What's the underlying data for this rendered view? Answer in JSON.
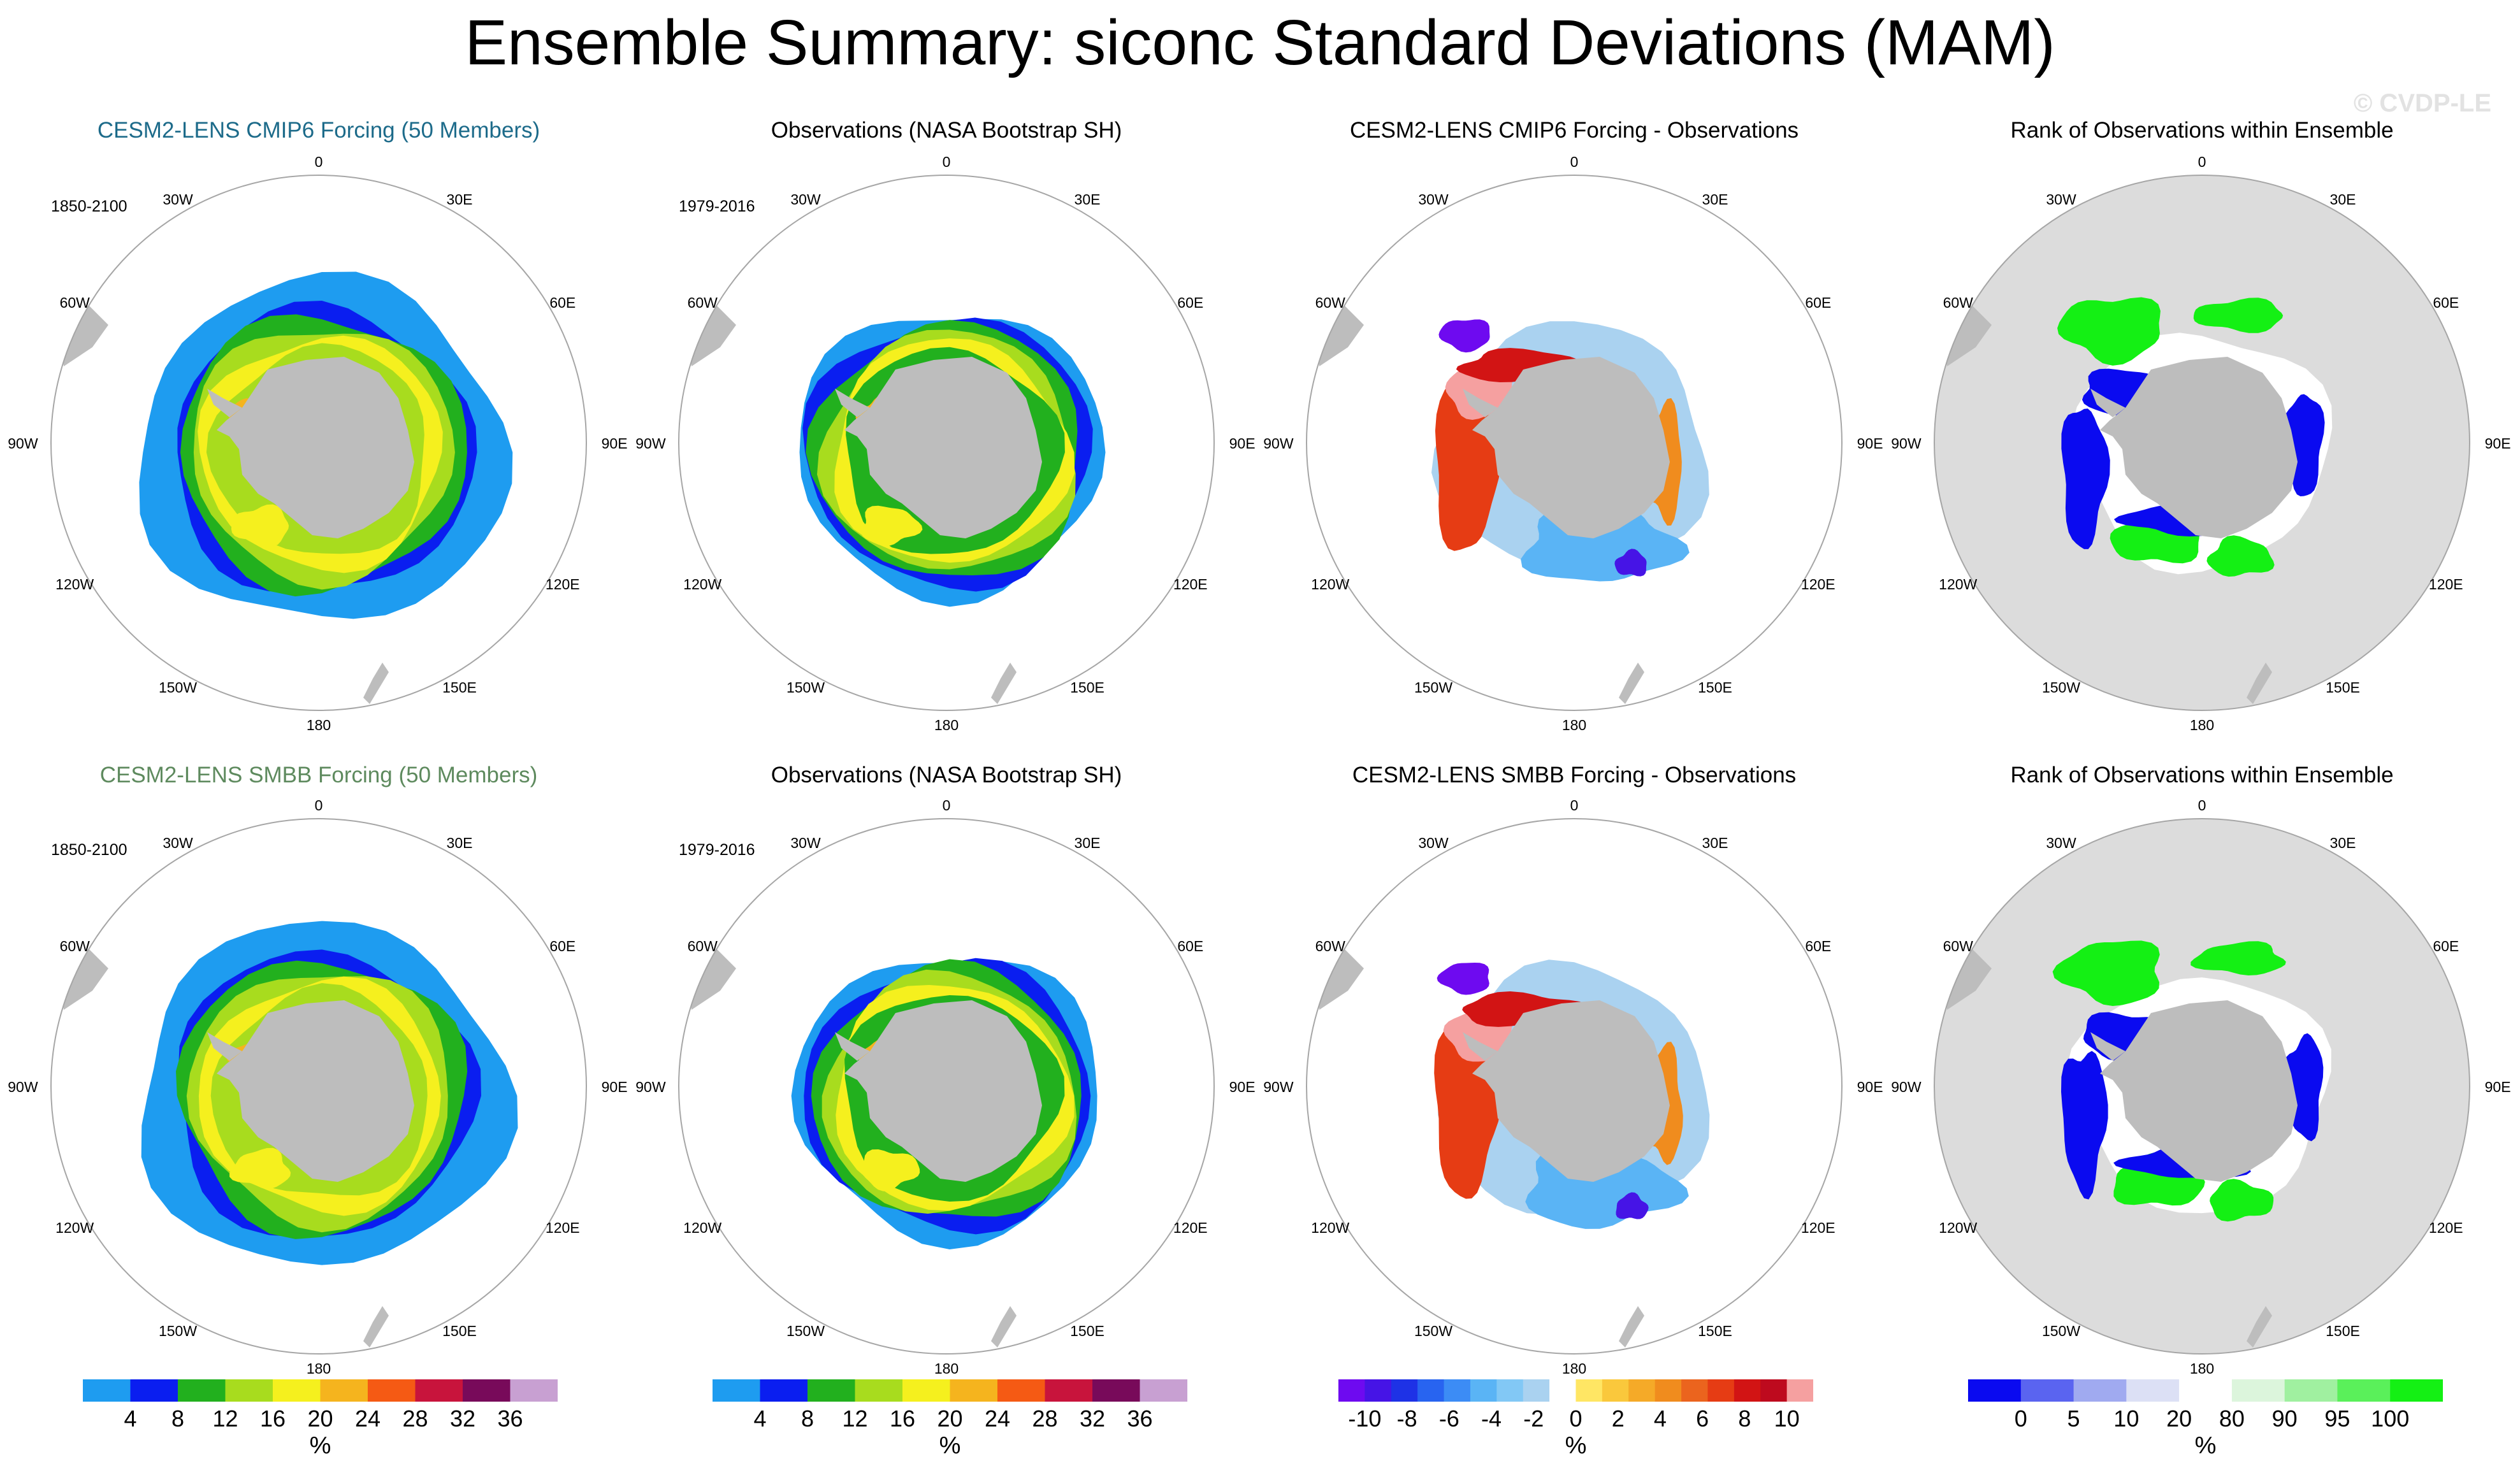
{
  "title": "Ensemble Summary: siconc Standard Deviations (MAM)",
  "watermark": "© CVDP-LE",
  "colors": {
    "title_cmip6": "#1d6b8a",
    "title_smbb": "#5e8a5e",
    "land": "#bdbdbd",
    "circle": "#a6a6a6",
    "rank_background": "#dcdcdc"
  },
  "rows": [
    {
      "panels": [
        {
          "title": "CESM2-LENS CMIP6 Forcing (50 Members)",
          "date": "1850-2100",
          "type": "std",
          "variant": "model_cmip6"
        },
        {
          "title": "Observations (NASA Bootstrap SH)",
          "date": "1979-2016",
          "type": "std",
          "variant": "obs"
        },
        {
          "title": "CESM2-LENS CMIP6 Forcing - Observations",
          "date": "",
          "type": "diff",
          "variant": "diff_cmip6"
        },
        {
          "title": "Rank of Observations within Ensemble",
          "date": "",
          "type": "rank",
          "variant": "rank_cmip6"
        }
      ]
    },
    {
      "panels": [
        {
          "title": "CESM2-LENS SMBB Forcing (50 Members)",
          "date": "1850-2100",
          "type": "std",
          "variant": "model_smbb"
        },
        {
          "title": "Observations (NASA Bootstrap SH)",
          "date": "1979-2016",
          "type": "std",
          "variant": "obs"
        },
        {
          "title": "CESM2-LENS SMBB Forcing - Observations",
          "date": "",
          "type": "diff",
          "variant": "diff_smbb"
        },
        {
          "title": "Rank of Observations within Ensemble",
          "date": "",
          "type": "rank",
          "variant": "rank_smbb"
        }
      ]
    }
  ],
  "longitude_labels": [
    {
      "label": "0",
      "deg": 0
    },
    {
      "label": "30E",
      "deg": 30
    },
    {
      "label": "60E",
      "deg": 60
    },
    {
      "label": "90E",
      "deg": 90
    },
    {
      "label": "120E",
      "deg": 120
    },
    {
      "label": "150E",
      "deg": 150
    },
    {
      "label": "180",
      "deg": 180
    },
    {
      "label": "150W",
      "deg": 210
    },
    {
      "label": "120W",
      "deg": 240
    },
    {
      "label": "90W",
      "deg": 270
    },
    {
      "label": "60W",
      "deg": 300
    },
    {
      "label": "30W",
      "deg": 330
    }
  ],
  "chart_data": {
    "type": "heatmap",
    "projection": "south polar stereographic",
    "variable": "siconc",
    "season": "MAM",
    "colorbars": [
      {
        "id": "std",
        "unit": "%",
        "labels": [
          "4",
          "8",
          "12",
          "16",
          "20",
          "24",
          "28",
          "32",
          "36"
        ],
        "colors": [
          "#1e9cf0",
          "#0a1ef0",
          "#22b01e",
          "#a8dc1e",
          "#f5f01e",
          "#f5b41e",
          "#f55a14",
          "#c8143c",
          "#780a5a",
          "#c8a0d2"
        ]
      },
      {
        "id": "diff",
        "unit": "%",
        "labels": [
          "-10",
          "-8",
          "-6",
          "-4",
          "-2",
          "0",
          "2",
          "4",
          "6",
          "8",
          "10"
        ],
        "colors": [
          "#6e0af0",
          "#4614e6",
          "#1e32e6",
          "#2864f0",
          "#3c8cf5",
          "#5ab4f5",
          "#82c8f5",
          "#aad2f0",
          "#ffffff",
          "#ffe664",
          "#fac83c",
          "#f5aa28",
          "#f08c1e",
          "#eb641e",
          "#e63c14",
          "#d21414",
          "#be0a1e",
          "#f5a0a0"
        ]
      },
      {
        "id": "rank",
        "unit": "%",
        "labels": [
          "0",
          "5",
          "10",
          "20",
          "80",
          "90",
          "95",
          "100"
        ],
        "colors": [
          "#0a0af0",
          "#5a64f0",
          "#a0aaf0",
          "#dce0f5",
          "#ffffff",
          "#dcf5dc",
          "#a0f0a0",
          "#5af05a",
          "#14f014"
        ]
      }
    ],
    "panels": [
      {
        "title": "CESM2-LENS CMIP6 Forcing (50 Members)",
        "colorbar": "std",
        "period": "1850-2100"
      },
      {
        "title": "Observations (NASA Bootstrap SH)",
        "colorbar": "std",
        "period": "1979-2016"
      },
      {
        "title": "CESM2-LENS CMIP6 Forcing - Observations",
        "colorbar": "diff"
      },
      {
        "title": "Rank of Observations within Ensemble",
        "colorbar": "rank"
      },
      {
        "title": "CESM2-LENS SMBB Forcing (50 Members)",
        "colorbar": "std",
        "period": "1850-2100"
      },
      {
        "title": "Observations (NASA Bootstrap SH)",
        "colorbar": "std",
        "period": "1979-2016"
      },
      {
        "title": "CESM2-LENS SMBB Forcing - Observations",
        "colorbar": "diff"
      },
      {
        "title": "Rank of Observations within Ensemble",
        "colorbar": "rank"
      }
    ]
  }
}
